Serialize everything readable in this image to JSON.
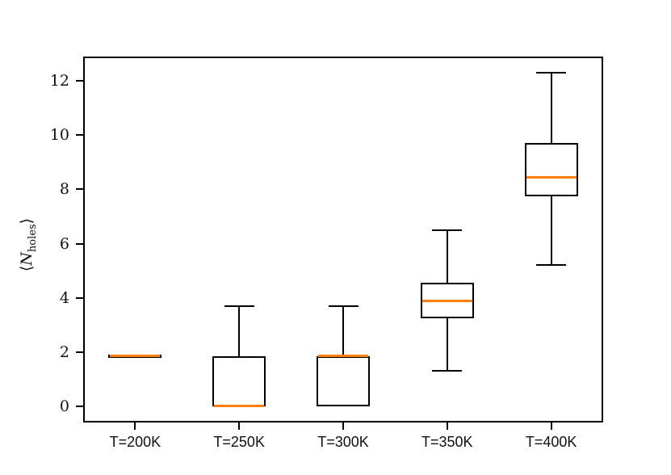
{
  "figure": {
    "background": "#ffffff",
    "axis_color": "#000000",
    "ylabel": {
      "plain": "⟨N_holes⟩",
      "open": "⟨",
      "symbol": "N",
      "subscript": "holes",
      "close": "⟩"
    }
  },
  "chart_data": {
    "type": "boxplot",
    "title": "",
    "xlabel": "",
    "ylabel": "⟨N_holes⟩",
    "categories": [
      "T=200K",
      "T=250K",
      "T=300K",
      "T=350K",
      "T=400K"
    ],
    "yticks": [
      0,
      2,
      4,
      6,
      8,
      10,
      12
    ],
    "ylim": [
      -0.6,
      12.9
    ],
    "grid": false,
    "legend_position": "none",
    "median_color": "#ff7f0e",
    "box_edge_color": "#000000",
    "series": [
      {
        "category": "T=200K",
        "whisker_low": 1.85,
        "q1": 1.85,
        "median": 1.85,
        "q3": 1.85,
        "whisker_high": 1.85
      },
      {
        "category": "T=250K",
        "whisker_low": 0.0,
        "q1": 0.0,
        "median": 0.0,
        "q3": 1.85,
        "whisker_high": 3.7
      },
      {
        "category": "T=300K",
        "whisker_low": 0.0,
        "q1": 0.0,
        "median": 1.85,
        "q3": 1.85,
        "whisker_high": 3.7
      },
      {
        "category": "T=350K",
        "whisker_low": 1.3,
        "q1": 3.25,
        "median": 3.9,
        "q3": 4.55,
        "whisker_high": 6.5
      },
      {
        "category": "T=400K",
        "whisker_low": 5.2,
        "q1": 7.75,
        "median": 8.45,
        "q3": 9.7,
        "whisker_high": 12.3
      }
    ]
  }
}
